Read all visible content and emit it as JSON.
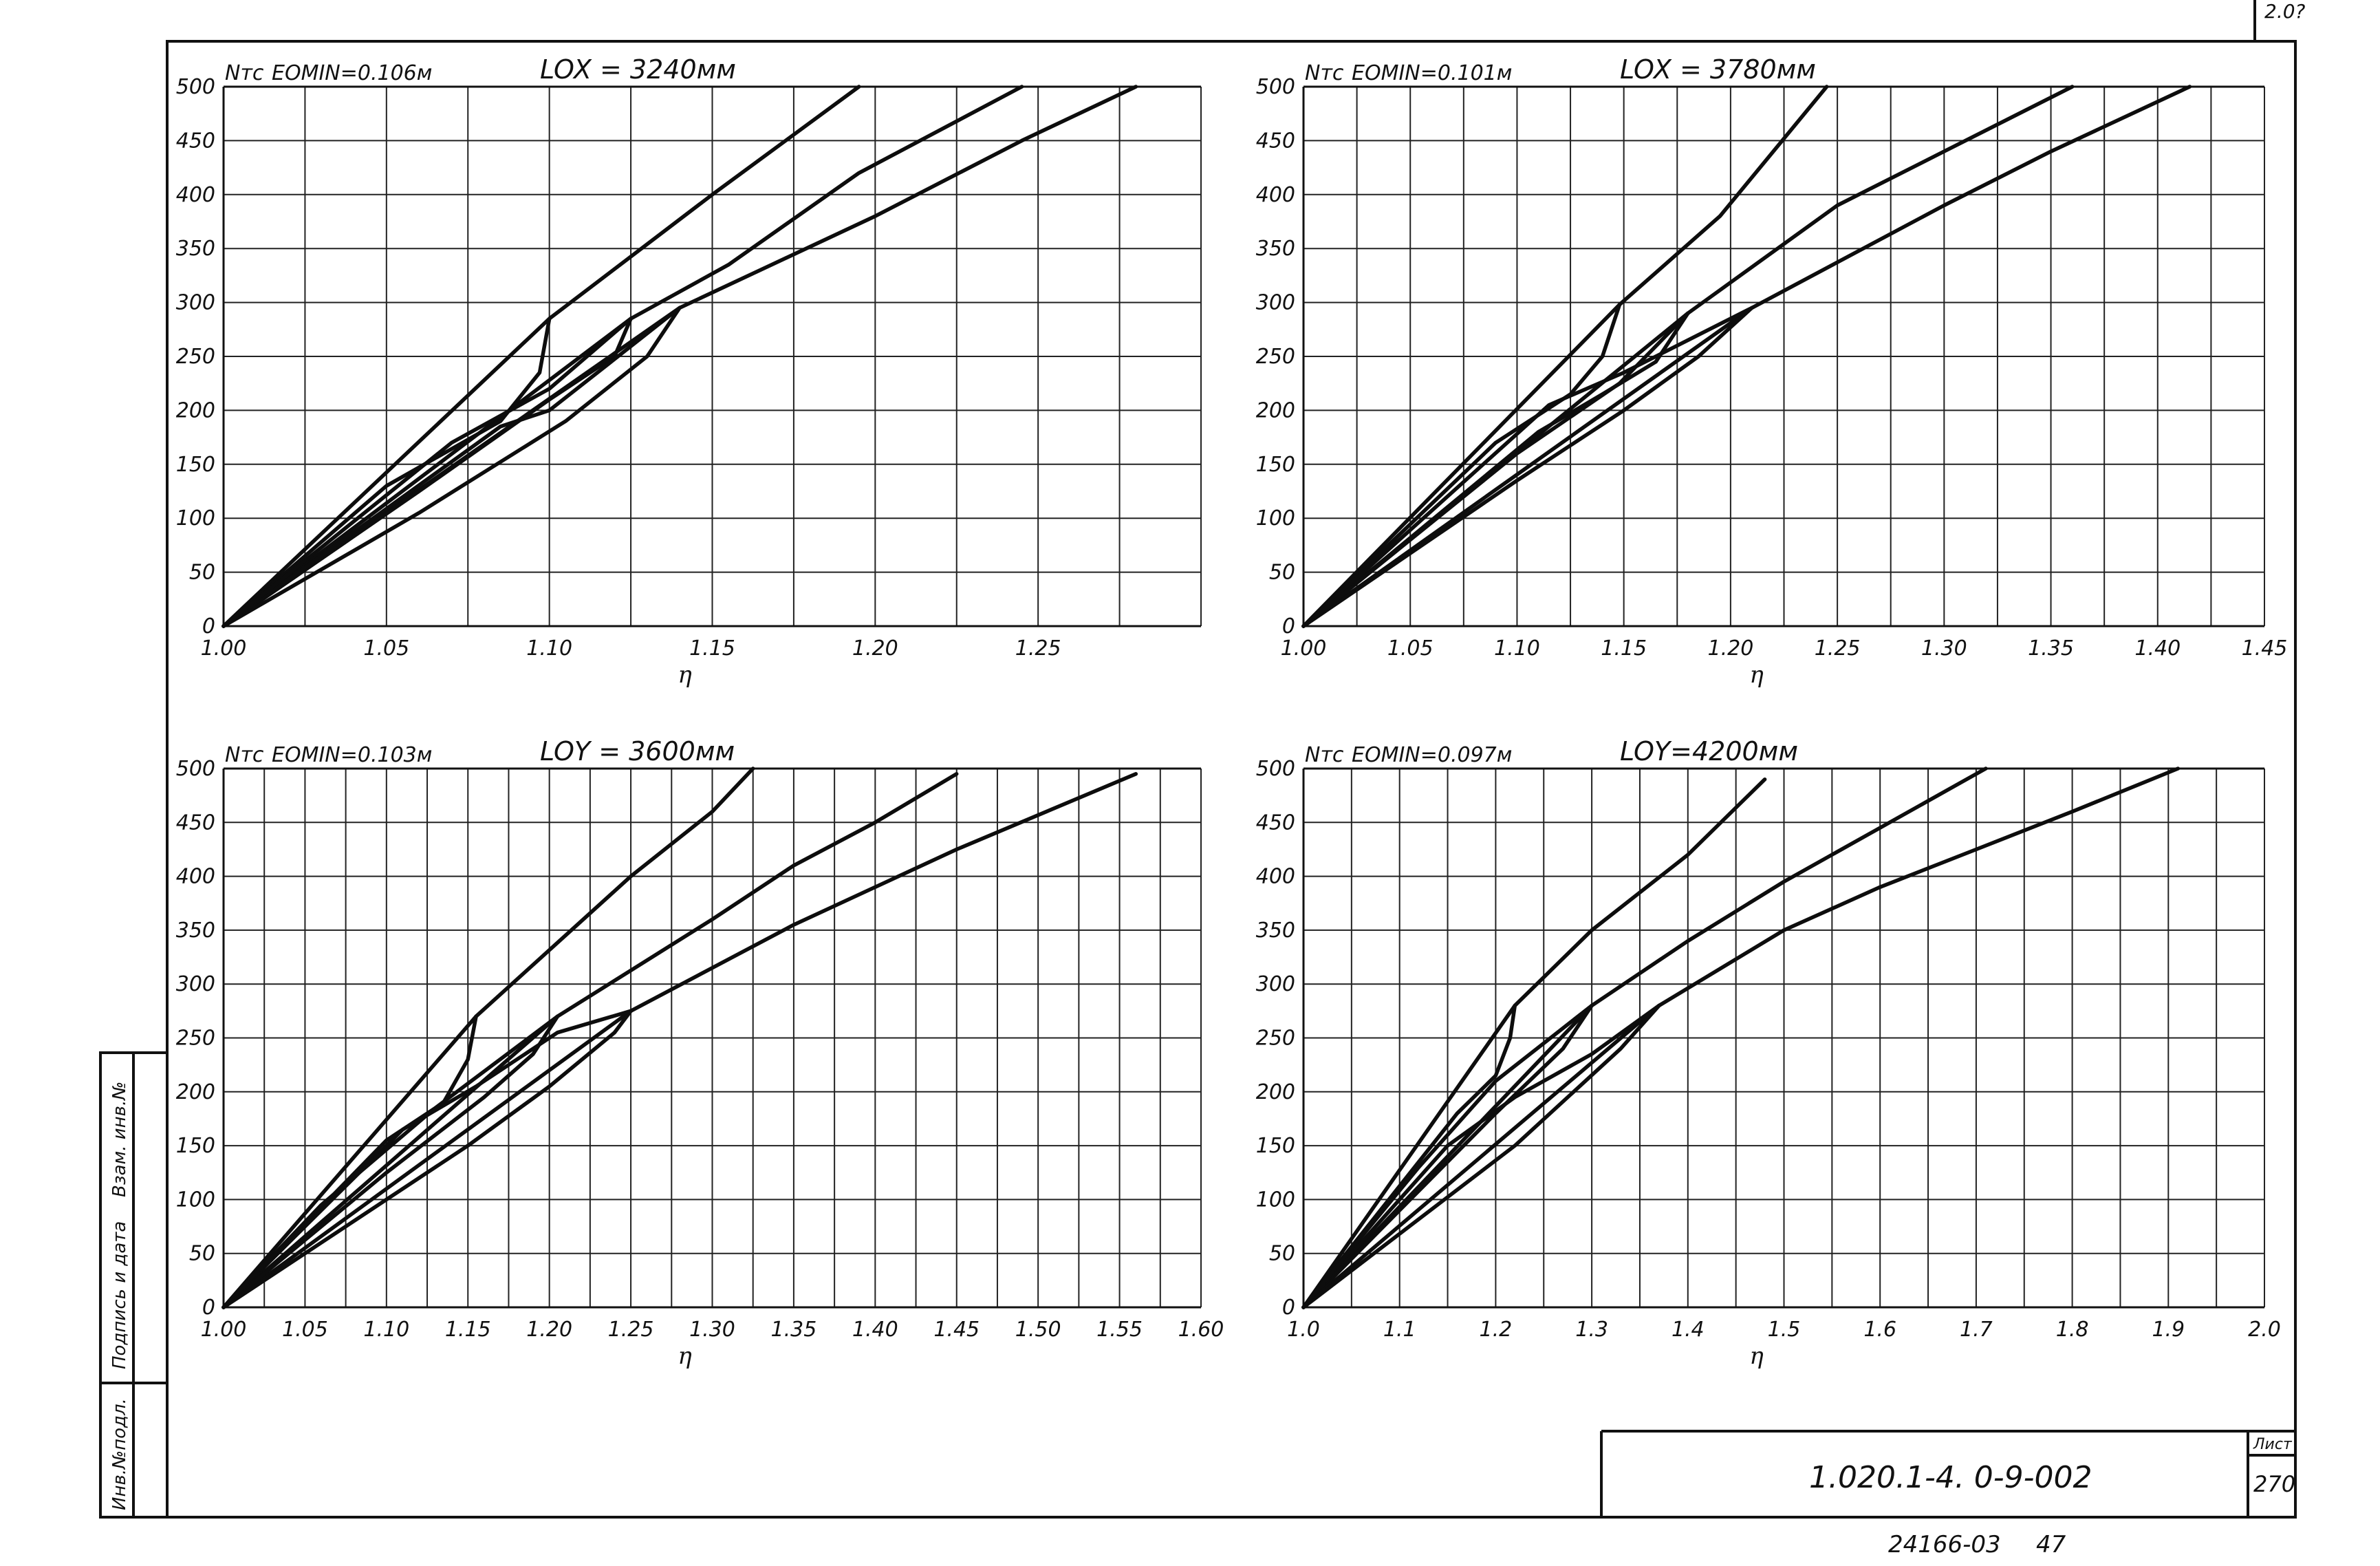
{
  "sheet": {
    "designation": "1.020.1-4. 0-9-002",
    "sheet_label": "Лист",
    "sheet_number": "270",
    "bottom_code": "24166-03",
    "bottom_number": "47",
    "corner_mark": "2.0?",
    "side_stamp_1": "Инв.№подл.",
    "side_stamp_2": "Подпись и дата",
    "side_stamp_3": "Взам. инв.№"
  },
  "chart_data": [
    {
      "type": "line",
      "ylabel": "Nтс",
      "emin_label": "EOMIN=0.106м",
      "length_label": "LOX = 3240мм",
      "xlabel": "η",
      "xlim": [
        1.0,
        1.3
      ],
      "ylim": [
        0,
        500
      ],
      "x_ticks": [
        1.0,
        1.05,
        1.1,
        1.15,
        1.2,
        1.25
      ],
      "x_tick_labels": [
        "1.00",
        "1.05",
        "1.10",
        "1.15",
        "1.20",
        "1.25"
      ],
      "y_ticks": [
        0,
        50,
        100,
        150,
        200,
        250,
        300,
        350,
        400,
        450,
        500
      ],
      "y_tick_labels": [
        "0",
        "50",
        "100",
        "150",
        "200",
        "250",
        "300",
        "350",
        "400",
        "450",
        "500"
      ],
      "series": [
        {
          "x": [
            1.0,
            1.1,
            1.15,
            1.195
          ],
          "y": [
            0,
            285,
            400,
            500
          ]
        },
        {
          "x": [
            1.0,
            1.125,
            1.155,
            1.195,
            1.245
          ],
          "y": [
            0,
            285,
            335,
            420,
            500
          ]
        },
        {
          "x": [
            1.0,
            1.14,
            1.2,
            1.245,
            1.28
          ],
          "y": [
            0,
            295,
            380,
            450,
            500
          ]
        },
        {
          "x": [
            1.0,
            1.05,
            1.085,
            1.097,
            1.1
          ],
          "y": [
            0,
            130,
            190,
            235,
            285
          ]
        },
        {
          "x": [
            1.0,
            1.06,
            1.1,
            1.12,
            1.125
          ],
          "y": [
            0,
            125,
            210,
            250,
            285
          ]
        },
        {
          "x": [
            1.0,
            1.06,
            1.105,
            1.13,
            1.14
          ],
          "y": [
            0,
            105,
            190,
            250,
            295
          ]
        },
        {
          "x": [
            1.0,
            1.085,
            1.1,
            1.14
          ],
          "y": [
            0,
            185,
            200,
            295
          ]
        },
        {
          "x": [
            1.0,
            1.07,
            1.1,
            1.125
          ],
          "y": [
            0,
            170,
            220,
            285
          ]
        }
      ]
    },
    {
      "type": "line",
      "ylabel": "Nтс",
      "emin_label": "EOMIN=0.101м",
      "length_label": "LOX = 3780мм",
      "xlabel": "η",
      "xlim": [
        1.0,
        1.45
      ],
      "ylim": [
        0,
        500
      ],
      "x_ticks": [
        1.0,
        1.05,
        1.1,
        1.15,
        1.2,
        1.25,
        1.3,
        1.35,
        1.4,
        1.45
      ],
      "x_tick_labels": [
        "1.00",
        "1.05",
        "1.10",
        "1.15",
        "1.20",
        "1.25",
        "1.30",
        "1.35",
        "1.40",
        "1.45"
      ],
      "y_ticks": [
        0,
        50,
        100,
        150,
        200,
        250,
        300,
        350,
        400,
        450,
        500
      ],
      "y_tick_labels": [
        "0",
        "50",
        "100",
        "150",
        "200",
        "250",
        "300",
        "350",
        "400",
        "450",
        "500"
      ],
      "series": [
        {
          "x": [
            1.0,
            1.148,
            1.195,
            1.245
          ],
          "y": [
            0,
            298,
            380,
            500
          ]
        },
        {
          "x": [
            1.0,
            1.18,
            1.25,
            1.3,
            1.36
          ],
          "y": [
            0,
            290,
            390,
            440,
            500
          ]
        },
        {
          "x": [
            1.0,
            1.21,
            1.3,
            1.35,
            1.415
          ],
          "y": [
            0,
            295,
            390,
            440,
            500
          ]
        },
        {
          "x": [
            1.0,
            1.09,
            1.125,
            1.14,
            1.148
          ],
          "y": [
            0,
            170,
            215,
            250,
            298
          ]
        },
        {
          "x": [
            1.0,
            1.11,
            1.14,
            1.165,
            1.18
          ],
          "y": [
            0,
            180,
            215,
            245,
            290
          ]
        },
        {
          "x": [
            1.0,
            1.1,
            1.15,
            1.185,
            1.21
          ],
          "y": [
            0,
            135,
            200,
            250,
            295
          ]
        },
        {
          "x": [
            1.0,
            1.115,
            1.15,
            1.21
          ],
          "y": [
            0,
            205,
            235,
            295
          ]
        },
        {
          "x": [
            1.0,
            1.1,
            1.148,
            1.18
          ],
          "y": [
            0,
            160,
            225,
            290
          ]
        }
      ]
    },
    {
      "type": "line",
      "ylabel": "Nтс",
      "emin_label": "EOMIN=0.103м",
      "length_label": "LOY = 3600мм",
      "xlabel": "η",
      "xlim": [
        1.0,
        1.6
      ],
      "ylim": [
        0,
        500
      ],
      "x_ticks": [
        1.0,
        1.05,
        1.1,
        1.15,
        1.2,
        1.25,
        1.3,
        1.35,
        1.4,
        1.45,
        1.5,
        1.55,
        1.6
      ],
      "x_tick_labels": [
        "1.00",
        "1.05",
        "1.10",
        "1.15",
        "1.20",
        "1.25",
        "1.30",
        "1.35",
        "1.40",
        "1.45",
        "1.50",
        "1.55",
        "1.60"
      ],
      "y_ticks": [
        0,
        50,
        100,
        150,
        200,
        250,
        300,
        350,
        400,
        450,
        500
      ],
      "y_tick_labels": [
        "0",
        "50",
        "100",
        "150",
        "200",
        "250",
        "300",
        "350",
        "400",
        "450",
        "500"
      ],
      "series": [
        {
          "x": [
            1.0,
            1.155,
            1.25,
            1.3,
            1.325
          ],
          "y": [
            0,
            270,
            400,
            460,
            500
          ]
        },
        {
          "x": [
            1.0,
            1.205,
            1.3,
            1.35,
            1.4,
            1.45
          ],
          "y": [
            0,
            270,
            360,
            410,
            450,
            495
          ]
        },
        {
          "x": [
            1.0,
            1.25,
            1.35,
            1.45,
            1.56
          ],
          "y": [
            0,
            275,
            355,
            425,
            495
          ]
        },
        {
          "x": [
            1.0,
            1.1,
            1.135,
            1.15,
            1.155
          ],
          "y": [
            0,
            155,
            190,
            230,
            270
          ]
        },
        {
          "x": [
            1.0,
            1.1,
            1.16,
            1.19,
            1.205
          ],
          "y": [
            0,
            125,
            195,
            235,
            270
          ]
        },
        {
          "x": [
            1.0,
            1.15,
            1.2,
            1.24,
            1.25
          ],
          "y": [
            0,
            150,
            205,
            255,
            275
          ]
        },
        {
          "x": [
            1.0,
            1.11,
            1.155,
            1.205,
            1.25
          ],
          "y": [
            0,
            165,
            205,
            255,
            275
          ]
        },
        {
          "x": [
            1.0,
            1.06,
            1.13,
            1.205
          ],
          "y": [
            0,
            95,
            185,
            270
          ]
        }
      ]
    },
    {
      "type": "line",
      "ylabel": "Nтс",
      "emin_label": "EOMIN=0.097м",
      "length_label": "LOY=4200мм",
      "xlabel": "η",
      "xlim": [
        1.0,
        2.0
      ],
      "ylim": [
        0,
        500
      ],
      "x_ticks": [
        1.0,
        1.1,
        1.2,
        1.3,
        1.4,
        1.5,
        1.6,
        1.7,
        1.8,
        1.9,
        2.0
      ],
      "x_tick_labels": [
        "1.0",
        "1.1",
        "1.2",
        "1.3",
        "1.4",
        "1.5",
        "1.6",
        "1.7",
        "1.8",
        "1.9",
        "2.0"
      ],
      "y_ticks": [
        0,
        50,
        100,
        150,
        200,
        250,
        300,
        350,
        400,
        450,
        500
      ],
      "y_tick_labels": [
        "0",
        "50",
        "100",
        "150",
        "200",
        "250",
        "300",
        "350",
        "400",
        "450",
        "500"
      ],
      "series": [
        {
          "x": [
            1.0,
            1.22,
            1.3,
            1.4,
            1.48
          ],
          "y": [
            0,
            280,
            350,
            420,
            490
          ]
        },
        {
          "x": [
            1.0,
            1.3,
            1.4,
            1.5,
            1.6,
            1.71
          ],
          "y": [
            0,
            280,
            340,
            395,
            445,
            500
          ]
        },
        {
          "x": [
            1.0,
            1.37,
            1.5,
            1.6,
            1.7,
            1.8,
            1.91
          ],
          "y": [
            0,
            280,
            350,
            390,
            425,
            460,
            500
          ]
        },
        {
          "x": [
            1.0,
            1.16,
            1.2,
            1.215,
            1.22
          ],
          "y": [
            0,
            180,
            215,
            250,
            280
          ]
        },
        {
          "x": [
            1.0,
            1.2,
            1.27,
            1.3
          ],
          "y": [
            0,
            180,
            240,
            280
          ]
        },
        {
          "x": [
            1.0,
            1.22,
            1.33,
            1.37
          ],
          "y": [
            0,
            150,
            240,
            280
          ]
        },
        {
          "x": [
            1.0,
            1.15,
            1.22,
            1.3,
            1.37
          ],
          "y": [
            0,
            150,
            195,
            235,
            280
          ]
        },
        {
          "x": [
            1.0,
            1.12,
            1.2,
            1.3
          ],
          "y": [
            0,
            130,
            210,
            280
          ]
        }
      ]
    }
  ]
}
